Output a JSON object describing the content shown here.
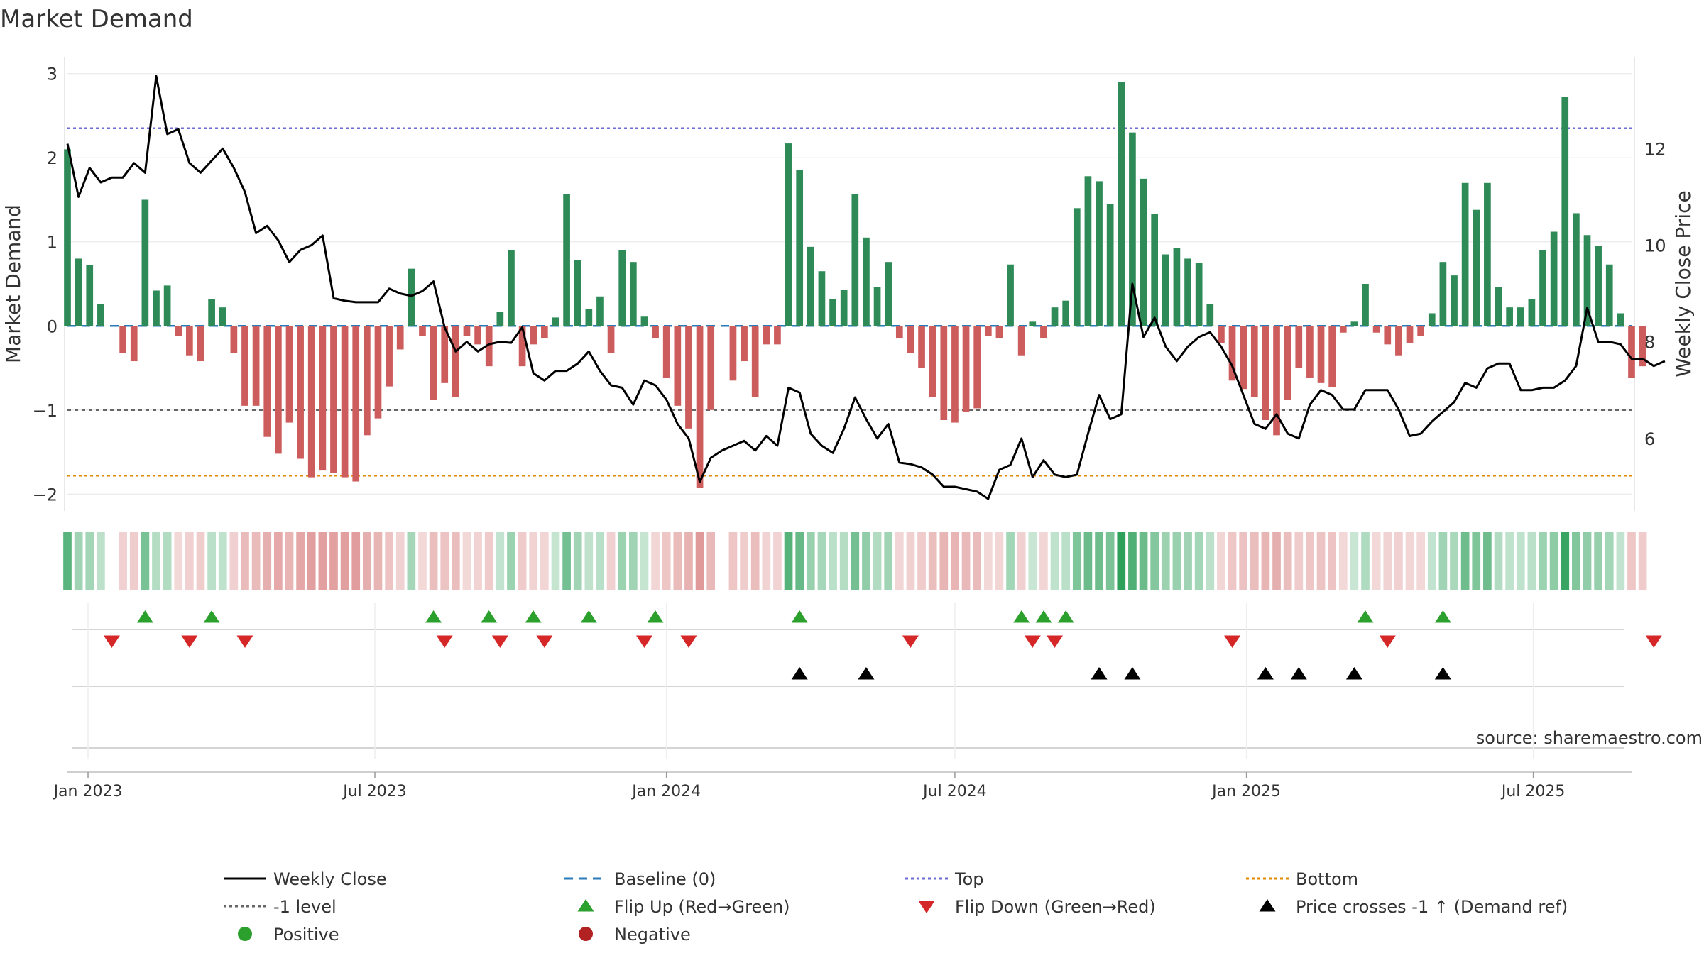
{
  "chart_data": {
    "type": "bar",
    "title": "Market Demand",
    "ylabel": "Market Demand",
    "y2label": "Weekly Close Price",
    "ylim": [
      -2.2,
      3.2
    ],
    "y2lim": [
      4.5,
      13.9
    ],
    "yticks": [
      3,
      2,
      1,
      0,
      -1,
      -2
    ],
    "yticklabels": [
      "3",
      "2",
      "1",
      "0",
      "−1",
      "−2"
    ],
    "y2ticks": [
      12,
      10,
      8,
      6
    ],
    "y2ticklabels": [
      "12",
      "10",
      "8",
      "6"
    ],
    "x_start": "2022-12-19",
    "x_end": "2025-09-01",
    "week_step": 7,
    "xticks": [
      "2023-01-01",
      "2023-07-01",
      "2024-01-01",
      "2024-07-01",
      "2025-01-01",
      "2025-07-01"
    ],
    "xticklabels": [
      "Jan 2023",
      "Jul 2023",
      "Jan 2024",
      "Jul 2024",
      "Jan 2025",
      "Jul 2025"
    ],
    "reference_lines": [
      {
        "name": "Top",
        "value": 2.35,
        "color": "#6b6bd6"
      },
      {
        "name": "-1 level",
        "value": -1,
        "color": "#666666"
      },
      {
        "name": "Bottom",
        "value": -1.78,
        "color": "#e08a00"
      },
      {
        "name": "Baseline (0)",
        "value": 0,
        "color": "#2b7bba"
      }
    ],
    "colors": {
      "positive": "#2e8b57",
      "negative": "#cd5c5c",
      "price": "#000000",
      "flip_up": "#2ca02c",
      "flip_down": "#d62728",
      "cross": "#000000"
    },
    "series": [
      {
        "name": "Market Demand",
        "values": [
          2.1,
          0.8,
          0.72,
          0.26,
          0,
          -0.32,
          -0.42,
          1.5,
          0.42,
          0.48,
          -0.12,
          -0.35,
          -0.42,
          0.32,
          0.22,
          -0.32,
          -0.95,
          -0.95,
          -1.32,
          -1.52,
          -1.15,
          -1.58,
          -1.8,
          -1.72,
          -1.75,
          -1.8,
          -1.85,
          -1.3,
          -1.1,
          -0.72,
          -0.28,
          0.68,
          -0.12,
          -0.88,
          -0.68,
          -0.85,
          -0.12,
          -0.22,
          -0.48,
          0.17,
          0.9,
          -0.48,
          -0.22,
          -0.15,
          0.1,
          1.57,
          0.78,
          0.2,
          0.35,
          -0.32,
          0.9,
          0.76,
          0.11,
          -0.15,
          -0.62,
          -0.95,
          -1.22,
          -1.93,
          -1.0,
          0,
          -0.65,
          -0.42,
          -0.85,
          -0.22,
          -0.22,
          2.17,
          1.85,
          0.94,
          0.65,
          0.32,
          0.43,
          1.57,
          1.05,
          0.46,
          0.76,
          -0.15,
          -0.32,
          -0.5,
          -0.85,
          -1.12,
          -1.15,
          -1.02,
          -0.98,
          -0.12,
          -0.15,
          0.73,
          -0.35,
          0.05,
          -0.15,
          0.22,
          0.3,
          1.4,
          1.78,
          1.72,
          1.45,
          2.9,
          2.3,
          1.75,
          1.33,
          0.85,
          0.93,
          0.8,
          0.75,
          0.26,
          -0.2,
          -0.65,
          -0.75,
          -0.85,
          -1.12,
          -1.3,
          -0.88,
          -0.5,
          -0.62,
          -0.68,
          -0.73,
          -0.08,
          0.05,
          0.5,
          -0.08,
          -0.22,
          -0.35,
          -0.2,
          -0.12,
          0.15,
          0.76,
          0.6,
          1.7,
          1.38,
          1.7,
          0.46,
          0.22,
          0.22,
          0.32,
          0.9,
          1.12,
          2.72,
          1.34,
          1.08,
          0.95,
          0.73,
          0.15,
          -0.62,
          -0.48
        ]
      },
      {
        "name": "Weekly Close",
        "values": [
          12.1,
          11.0,
          11.6,
          11.3,
          11.4,
          11.4,
          11.7,
          11.5,
          13.5,
          12.3,
          12.4,
          11.7,
          11.5,
          11.75,
          12.0,
          11.6,
          11.1,
          10.25,
          10.4,
          10.1,
          9.65,
          9.9,
          10.0,
          10.2,
          8.9,
          8.85,
          8.82,
          8.82,
          8.82,
          9.1,
          9.0,
          8.95,
          9.05,
          9.25,
          8.3,
          7.8,
          8.0,
          7.8,
          7.95,
          8.0,
          7.98,
          8.3,
          7.35,
          7.2,
          7.4,
          7.4,
          7.55,
          7.8,
          7.4,
          7.1,
          7.05,
          6.7,
          7.2,
          7.1,
          6.8,
          6.3,
          6.0,
          5.1,
          5.6,
          5.75,
          5.85,
          5.95,
          5.75,
          6.05,
          5.85,
          7.05,
          6.95,
          6.1,
          5.85,
          5.7,
          6.2,
          6.85,
          6.4,
          6.0,
          6.3,
          5.5,
          5.47,
          5.4,
          5.25,
          5.0,
          5.0,
          4.95,
          4.9,
          4.75,
          5.35,
          5.45,
          6.0,
          5.2,
          5.55,
          5.25,
          5.2,
          5.25,
          6.1,
          6.9,
          6.4,
          6.5,
          9.2,
          8.1,
          8.5,
          7.9,
          7.6,
          7.9,
          8.1,
          8.2,
          7.9,
          7.5,
          6.9,
          6.3,
          6.2,
          6.5,
          6.1,
          6.0,
          6.7,
          7.0,
          6.9,
          6.6,
          6.6,
          7.0,
          7.0,
          7.0,
          6.6,
          6.05,
          6.1,
          6.35,
          6.55,
          6.75,
          7.15,
          7.05,
          7.45,
          7.55,
          7.55,
          7.0,
          7.0,
          7.05,
          7.05,
          7.2,
          7.5,
          8.7,
          8.0,
          8.0,
          7.95,
          7.65,
          7.65,
          7.5,
          7.6
        ]
      }
    ],
    "strength_strip_values": [
      2.1,
      0.8,
      0.72,
      0.26,
      0,
      -0.32,
      -0.42,
      1.5,
      0.42,
      0.48,
      -0.12,
      -0.35,
      -0.42,
      0.32,
      0.22,
      -0.32,
      -0.95,
      -0.95,
      -1.32,
      -1.52,
      -1.15,
      -1.58,
      -1.8,
      -1.72,
      -1.75,
      -1.8,
      -1.85,
      -1.3,
      -1.1,
      -0.72,
      -0.28,
      0.68,
      -0.12,
      -0.88,
      -0.68,
      -0.85,
      -0.12,
      -0.22,
      -0.48,
      0.17,
      0.9,
      -0.48,
      -0.22,
      -0.15,
      0.1,
      1.57,
      0.78,
      0.2,
      0.35,
      -0.32,
      0.9,
      0.76,
      0.11,
      -0.15,
      -0.62,
      -0.95,
      -1.22,
      -1.93,
      -1.0,
      0,
      -0.65,
      -0.42,
      -0.85,
      -0.22,
      -0.22,
      2.17,
      1.85,
      0.94,
      0.65,
      0.32,
      0.43,
      1.57,
      1.05,
      0.46,
      0.76,
      -0.15,
      -0.32,
      -0.5,
      -0.85,
      -1.12,
      -1.15,
      -1.02,
      -0.98,
      -0.12,
      -0.15,
      0.73,
      -0.35,
      0.05,
      -0.15,
      0.22,
      0.3,
      1.4,
      1.78,
      1.72,
      1.45,
      2.9,
      2.3,
      1.75,
      1.33,
      0.85,
      0.93,
      0.8,
      0.75,
      0.26,
      -0.2,
      -0.65,
      -0.75,
      -0.85,
      -1.12,
      -1.3,
      -0.88,
      -0.5,
      -0.62,
      -0.68,
      -0.73,
      -0.08,
      0.05,
      0.5,
      -0.08,
      -0.22,
      -0.35,
      -0.2,
      -0.12,
      0.15,
      0.76,
      0.6,
      1.7,
      1.38,
      1.7,
      0.46,
      0.22,
      0.22,
      0.32,
      0.9,
      1.12,
      2.72,
      1.34,
      1.08,
      0.95,
      0.73,
      0.15,
      -0.62,
      -0.48
    ],
    "flip_up_weeks": [
      7,
      13,
      33,
      38,
      42,
      47,
      53,
      66,
      86,
      88,
      90,
      117,
      124
    ],
    "flip_down_weeks": [
      4,
      11,
      16,
      34,
      39,
      43,
      52,
      56,
      76,
      87,
      89,
      105,
      119,
      143
    ],
    "price_cross_weeks": [
      66,
      72,
      93,
      96,
      108,
      111,
      116,
      124
    ],
    "legend": [
      {
        "label": "Weekly Close",
        "marker": "line-solid",
        "color": "#000000"
      },
      {
        "label": "Baseline (0)",
        "marker": "line-dashed",
        "color": "#2b7bba"
      },
      {
        "label": "Top",
        "marker": "line-dotted",
        "color": "#6b6bd6"
      },
      {
        "label": "Bottom",
        "marker": "line-dotted",
        "color": "#e08a00"
      },
      {
        "label": "-1 level",
        "marker": "line-dotted",
        "color": "#666666"
      },
      {
        "label": "Flip Up (Red→Green)",
        "marker": "triangle-up",
        "color": "#2ca02c"
      },
      {
        "label": "Flip Down (Green→Red)",
        "marker": "triangle-down",
        "color": "#d62728"
      },
      {
        "label": "Price crosses -1 ↑ (Demand ref)",
        "marker": "triangle-up",
        "color": "#000000"
      },
      {
        "label": "Positive",
        "marker": "dot",
        "color": "#2ca02c"
      },
      {
        "label": "Negative",
        "marker": "dot",
        "color": "#b22222"
      }
    ],
    "annotation": "source: sharemaestro.com"
  }
}
